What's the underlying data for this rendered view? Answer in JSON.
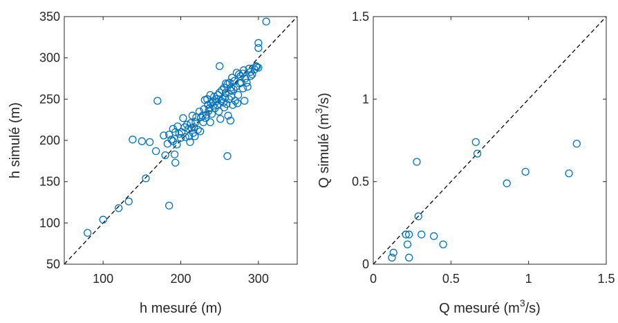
{
  "colors": {
    "marker": "#0072BD",
    "diagonal": "#000000",
    "axis": "#262626"
  },
  "chart_data": [
    {
      "type": "scatter",
      "title": "",
      "xlabel": "h mesuré (m)",
      "ylabel": "h simulé (m)",
      "xlim": [
        50,
        350
      ],
      "ylim": [
        50,
        350
      ],
      "xticks": [
        100,
        200,
        300
      ],
      "yticks": [
        50,
        100,
        150,
        200,
        250,
        300,
        350
      ],
      "xtick_labels": [
        "100",
        "200",
        "300"
      ],
      "ytick_labels": [
        "50",
        "100",
        "150",
        "200",
        "250",
        "300",
        "350"
      ],
      "grid": false,
      "reference_line": "y = x (dashed)",
      "marker": "open circle",
      "x": [
        80,
        100,
        120,
        133,
        138,
        150,
        155,
        160,
        168,
        170,
        178,
        180,
        183,
        185,
        185,
        188,
        190,
        190,
        192,
        193,
        193,
        195,
        196,
        198,
        200,
        201,
        203,
        205,
        206,
        208,
        210,
        211,
        212,
        213,
        214,
        215,
        216,
        217,
        218,
        219,
        220,
        222,
        224,
        225,
        226,
        228,
        229,
        230,
        231,
        232,
        233,
        234,
        235,
        236,
        237,
        238,
        238,
        239,
        240,
        241,
        242,
        243,
        244,
        245,
        246,
        247,
        248,
        249,
        250,
        251,
        252,
        253,
        254,
        255,
        256,
        256,
        257,
        258,
        259,
        260,
        260,
        261,
        262,
        263,
        264,
        265,
        265,
        266,
        267,
        268,
        269,
        270,
        271,
        272,
        273,
        274,
        275,
        276,
        277,
        278,
        280,
        281,
        282,
        283,
        285,
        286,
        288,
        290,
        292,
        295,
        297,
        298,
        300,
        300,
        300,
        250,
        258,
        265,
        280,
        290,
        310
      ],
      "y": [
        88,
        104,
        118,
        126,
        201,
        199,
        154,
        198,
        187,
        248,
        206,
        182,
        196,
        207,
        121,
        201,
        199,
        214,
        183,
        173,
        210,
        195,
        217,
        208,
        203,
        210,
        227,
        216,
        204,
        219,
        214,
        205,
        198,
        221,
        215,
        230,
        209,
        216,
        205,
        222,
        228,
        213,
        235,
        211,
        228,
        230,
        222,
        238,
        249,
        227,
        231,
        250,
        243,
        236,
        239,
        255,
        222,
        245,
        232,
        247,
        242,
        253,
        239,
        247,
        250,
        243,
        255,
        235,
        258,
        226,
        248,
        261,
        250,
        246,
        240,
        264,
        252,
        258,
        244,
        268,
        181,
        230,
        250,
        270,
        224,
        260,
        253,
        276,
        243,
        262,
        272,
        248,
        265,
        282,
        245,
        255,
        280,
        269,
        278,
        270,
        263,
        285,
        248,
        275,
        270,
        265,
        287,
        283,
        280,
        286,
        290,
        289,
        312,
        318,
        288,
        290,
        269,
        264,
        281,
        278,
        344
      ]
    },
    {
      "type": "scatter",
      "title": "",
      "xlabel": "Q mesuré (m³/s)",
      "ylabel": "Q simulé (m³/s)",
      "xlim": [
        0,
        1.5
      ],
      "ylim": [
        0,
        1.5
      ],
      "xticks": [
        0,
        0.5,
        1,
        1.5
      ],
      "yticks": [
        0,
        0.5,
        1,
        1.5
      ],
      "xtick_labels": [
        "0",
        "0.5",
        "1",
        "1.5"
      ],
      "ytick_labels": [
        "0",
        "0.5",
        "1",
        "1.5"
      ],
      "grid": false,
      "reference_line": "y = x (dashed)",
      "marker": "open circle",
      "x": [
        0.12,
        0.13,
        0.21,
        0.22,
        0.23,
        0.23,
        0.28,
        0.29,
        0.31,
        0.39,
        0.45,
        0.66,
        0.67,
        0.86,
        0.98,
        1.26,
        1.31
      ],
      "y": [
        0.04,
        0.07,
        0.18,
        0.12,
        0.04,
        0.18,
        0.62,
        0.29,
        0.18,
        0.17,
        0.12,
        0.74,
        0.67,
        0.49,
        0.56,
        0.55,
        0.73
      ]
    }
  ],
  "panels": [
    {
      "xlabel": "h mesuré (m)",
      "ylabel": "h simulé (m)"
    },
    {
      "xlabel_main": "Q mesuré (m",
      "xlabel_exp": "3",
      "xlabel_tail": "/s)",
      "ylabel_main": "Q simulé (m",
      "ylabel_exp": "3",
      "ylabel_tail": "/s)"
    }
  ]
}
